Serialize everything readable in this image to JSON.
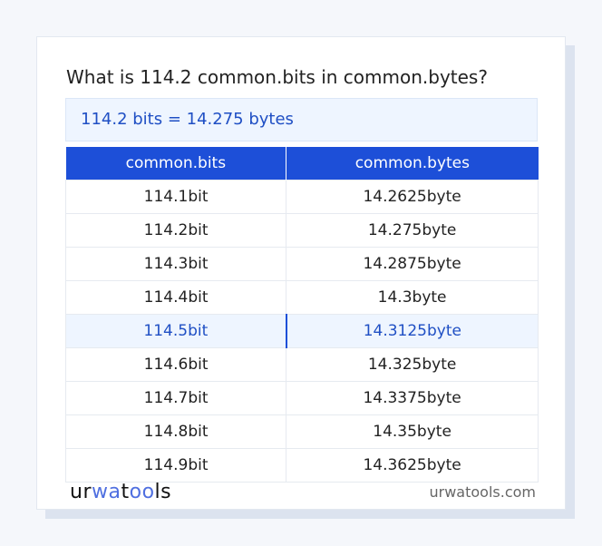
{
  "title": "What is 114.2 common.bits in common.bytes?",
  "result": "114.2 bits = 14.275 bytes",
  "table": {
    "headers": [
      "common.bits",
      "common.bytes"
    ],
    "rows": [
      [
        "114.1bit",
        "14.2625byte"
      ],
      [
        "114.2bit",
        "14.275byte"
      ],
      [
        "114.3bit",
        "14.2875byte"
      ],
      [
        "114.4bit",
        "14.3byte"
      ],
      [
        "114.5bit",
        "14.3125byte"
      ],
      [
        "114.6bit",
        "14.325byte"
      ],
      [
        "114.7bit",
        "14.3375byte"
      ],
      [
        "114.8bit",
        "14.35byte"
      ],
      [
        "114.9bit",
        "14.3625byte"
      ]
    ],
    "highlighted_row": 4
  },
  "footer": {
    "logo": "urwatools",
    "site": "urwatools.com"
  },
  "colors": {
    "accent": "#1d4fd8",
    "highlight_bg": "#eef5ff"
  }
}
